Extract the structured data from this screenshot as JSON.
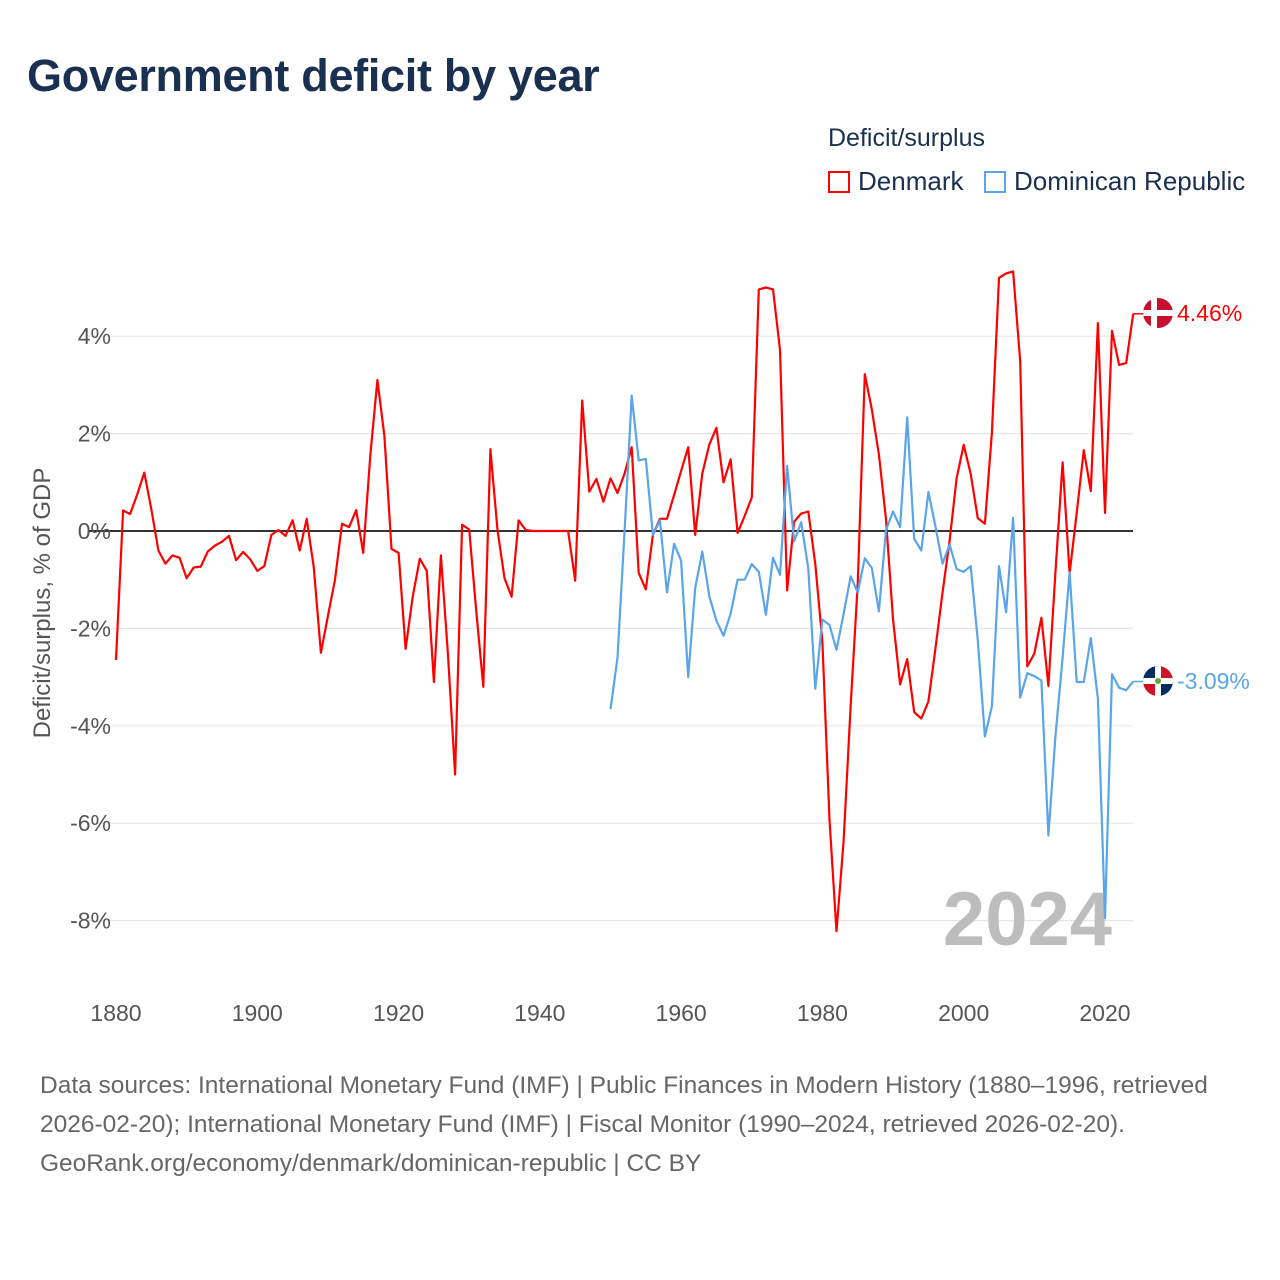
{
  "title": "Government deficit by year",
  "legend": {
    "title": "Deficit/surplus",
    "items": [
      {
        "label": "Denmark",
        "color": "#ff0000"
      },
      {
        "label": "Dominican Republic",
        "color": "#5aa5ea"
      }
    ]
  },
  "year_watermark": "2024",
  "end_labels": [
    {
      "country": "Denmark",
      "text": "4.46%",
      "color": "#ff0000",
      "flag": "denmark-flag"
    },
    {
      "country": "Dominican Republic",
      "text": "-3.09%",
      "color": "#5aa5ea",
      "flag": "dominican-republic-flag"
    }
  ],
  "footer": {
    "sources": "Data sources: International Monetary Fund (IMF) | Public Finances in Modern History (1880–1996, retrieved 2026-02-20); International Monetary Fund (IMF) | Fiscal Monitor (1990–2024, retrieved 2026-02-20).",
    "credit": "GeoRank.org/economy/denmark/dominican-republic | CC BY"
  },
  "chart_data": {
    "type": "line",
    "title": "Government deficit by year",
    "xlabel": "",
    "ylabel": "Deficit/surplus, % of GDP",
    "xlim": [
      1880,
      2024
    ],
    "ylim": [
      -9,
      5.5
    ],
    "x_ticks": [
      1880,
      1900,
      1920,
      1940,
      1960,
      1980,
      2000,
      2020
    ],
    "x_tick_labels": [
      "1880",
      "1900",
      "1920",
      "1940",
      "1960",
      "1980",
      "2000",
      "2020"
    ],
    "y_ticks": [
      4,
      2,
      0,
      -2,
      -4,
      -6,
      -8
    ],
    "y_tick_labels": [
      "4%",
      "2%",
      "0%",
      "-2%",
      "-4%",
      "-6%",
      "-8%"
    ],
    "grid": true,
    "legend_position": "top-right",
    "series": [
      {
        "name": "Denmark",
        "color": "#ff0000",
        "start_year": 1880,
        "values": [
          -2.65,
          0.42,
          0.35,
          0.75,
          1.2,
          0.45,
          -0.4,
          -0.67,
          -0.5,
          -0.55,
          -0.97,
          -0.75,
          -0.73,
          -0.42,
          -0.3,
          -0.22,
          -0.1,
          -0.6,
          -0.43,
          -0.58,
          -0.82,
          -0.72,
          -0.08,
          0.02,
          -0.1,
          0.22,
          -0.4,
          0.25,
          -0.75,
          -2.5,
          -1.75,
          -1.0,
          0.15,
          0.08,
          0.43,
          -0.45,
          1.55,
          3.1,
          1.95,
          -0.37,
          -0.45,
          -2.42,
          -1.35,
          -0.57,
          -0.82,
          -3.1,
          -0.5,
          -2.55,
          -5.0,
          0.13,
          0.03,
          -1.65,
          -3.2,
          1.68,
          0.02,
          -0.97,
          -1.35,
          0.22,
          0.02,
          0,
          0,
          0,
          0,
          0,
          0,
          -1.02,
          2.68,
          0.81,
          1.07,
          0.6,
          1.08,
          0.78,
          1.18,
          1.72,
          -0.86,
          -1.2,
          -0.08,
          0.25,
          0.25,
          0.74,
          1.23,
          1.72,
          -0.08,
          1.18,
          1.78,
          2.12,
          1.0,
          1.47,
          -0.04,
          0.31,
          0.69,
          4.96,
          5.0,
          4.96,
          3.72,
          -1.22,
          0.19,
          0.36,
          0.4,
          -0.68,
          -2.28,
          -5.93,
          -8.22,
          -6.37,
          -3.57,
          -1.1,
          3.22,
          2.5,
          1.57,
          0.24,
          -1.81,
          -3.15,
          -2.63,
          -3.72,
          -3.85,
          -3.5,
          -2.42,
          -1.27,
          -0.2,
          1.08,
          1.77,
          1.17,
          0.26,
          0.15,
          2.02,
          5.2,
          5.29,
          5.33,
          3.48,
          -2.78,
          -2.52,
          -1.78,
          -3.18,
          -0.83,
          1.41,
          -0.87,
          0.37,
          1.66,
          0.82,
          4.27,
          0.37,
          4.11,
          3.41,
          3.45,
          4.46
        ]
      },
      {
        "name": "Dominican Republic",
        "color": "#5aa5ea",
        "start_year": 1950,
        "values": [
          -3.66,
          -2.6,
          0.0,
          2.78,
          1.45,
          1.48,
          -0.08,
          0.22,
          -1.26,
          -0.26,
          -0.61,
          -3.0,
          -1.17,
          -0.42,
          -1.35,
          -1.84,
          -2.15,
          -1.7,
          -1.0,
          -1.0,
          -0.68,
          -0.84,
          -1.72,
          -0.55,
          -0.9,
          1.34,
          -0.21,
          0.18,
          -0.77,
          -3.24,
          -1.82,
          -1.93,
          -2.44,
          -1.7,
          -0.93,
          -1.26,
          -0.56,
          -0.76,
          -1.65,
          0.02,
          0.4,
          0.08,
          2.33,
          -0.16,
          -0.4,
          0.8,
          0.1,
          -0.67,
          -0.28,
          -0.78,
          -0.84,
          -0.72,
          -2.25,
          -4.22,
          -3.6,
          -0.72,
          -1.67,
          0.27,
          -3.42,
          -2.92,
          -2.98,
          -3.07,
          -6.25,
          -4.2,
          -2.6,
          -0.85,
          -3.1,
          -3.1,
          -2.2,
          -3.45,
          -7.95,
          -2.94,
          -3.22,
          -3.27,
          -3.09
        ]
      }
    ]
  }
}
